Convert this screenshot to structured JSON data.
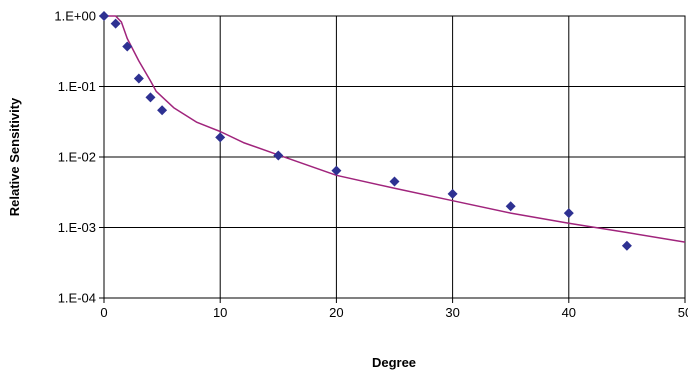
{
  "chart_data": {
    "type": "scatter",
    "xlabel": "Degree",
    "ylabel": "Relative Sensitivity",
    "xlim": [
      0,
      50
    ],
    "ylim": [
      0.0001,
      1
    ],
    "y_scale": "log",
    "grid": true,
    "legend": "none",
    "x_ticks": [
      "0",
      "10",
      "20",
      "30",
      "40",
      "50"
    ],
    "y_ticks": [
      "1.E-04",
      "1.E-03",
      "1.E-02",
      "1.E-01",
      "1.E+00"
    ],
    "y_tick_values": [
      0.0001,
      0.001,
      0.01,
      0.1,
      1
    ],
    "series": [
      {
        "kind": "scatter",
        "color": "#2e3192",
        "marker": "diamond",
        "x": [
          0,
          1,
          2,
          3,
          4,
          5,
          10,
          15,
          20,
          25,
          30,
          35,
          40,
          45
        ],
        "y": [
          1.0,
          0.78,
          0.37,
          0.13,
          0.07,
          0.046,
          0.019,
          0.0105,
          0.0064,
          0.0045,
          0.003,
          0.002,
          0.0016,
          0.00055
        ]
      },
      {
        "kind": "line",
        "color": "#a0247c",
        "x": [
          0,
          1,
          1.5,
          2,
          3,
          4,
          4.5,
          6,
          8,
          10,
          12,
          15,
          20,
          25,
          30,
          35,
          40,
          45,
          50
        ],
        "y": [
          1.0,
          1.0,
          0.82,
          0.48,
          0.23,
          0.12,
          0.085,
          0.05,
          0.031,
          0.023,
          0.016,
          0.0107,
          0.0055,
          0.0036,
          0.0024,
          0.0016,
          0.00115,
          0.00085,
          0.00062
        ]
      }
    ]
  }
}
